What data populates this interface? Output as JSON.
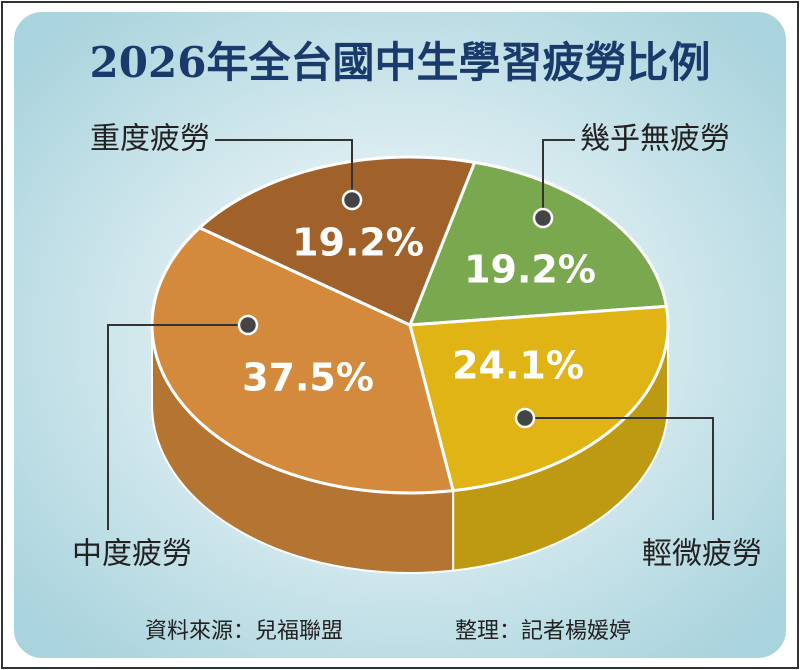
{
  "chart_data": {
    "type": "pie3d",
    "title": "2026年全台國中生學習疲勞比例",
    "categories": [
      "幾乎無疲勞",
      "輕微疲勞",
      "中度疲勞",
      "重度疲勞"
    ],
    "values": [
      19.2,
      24.1,
      37.5,
      19.2
    ],
    "value_labels": [
      "19.2%",
      "24.1%",
      "37.5%",
      "19.2%"
    ],
    "colors": [
      "#7aa84f",
      "#e0b415",
      "#d48a3c",
      "#a0622a"
    ],
    "source": "資料來源：兒福聯盟",
    "editor": "整理：記者楊媛婷"
  }
}
